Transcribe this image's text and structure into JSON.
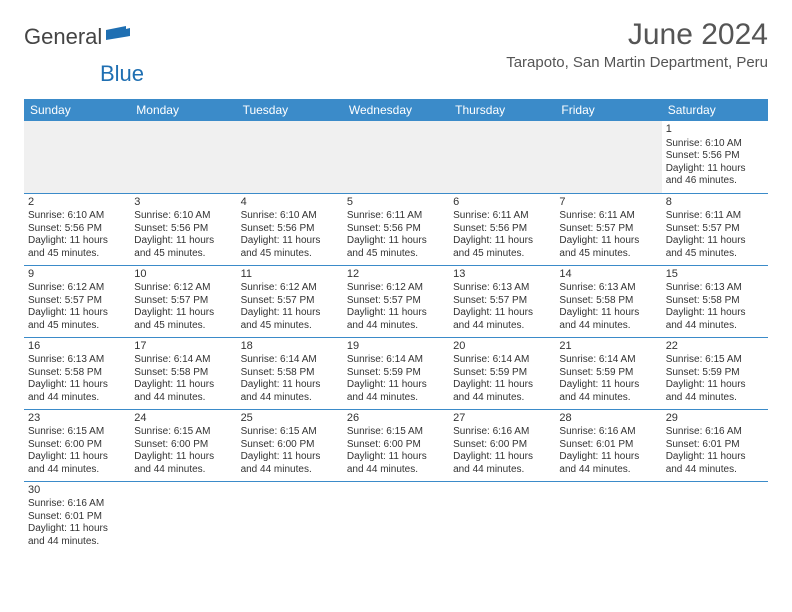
{
  "logo": {
    "general": "General",
    "blue": "Blue"
  },
  "header": {
    "month_title": "June 2024",
    "location": "Tarapoto, San Martin Department, Peru"
  },
  "colors": {
    "header_bg": "#3b8bc9",
    "header_text": "#ffffff",
    "cell_border": "#3b8bc9",
    "blank_bg": "#f0f0f0",
    "text": "#333333",
    "logo_blue": "#1f6fb2"
  },
  "day_names": [
    "Sunday",
    "Monday",
    "Tuesday",
    "Wednesday",
    "Thursday",
    "Friday",
    "Saturday"
  ],
  "weeks": [
    [
      null,
      null,
      null,
      null,
      null,
      null,
      {
        "n": "1",
        "sr": "6:10 AM",
        "ss": "5:56 PM",
        "dl": "11 hours and 46 minutes."
      }
    ],
    [
      {
        "n": "2",
        "sr": "6:10 AM",
        "ss": "5:56 PM",
        "dl": "11 hours and 45 minutes."
      },
      {
        "n": "3",
        "sr": "6:10 AM",
        "ss": "5:56 PM",
        "dl": "11 hours and 45 minutes."
      },
      {
        "n": "4",
        "sr": "6:10 AM",
        "ss": "5:56 PM",
        "dl": "11 hours and 45 minutes."
      },
      {
        "n": "5",
        "sr": "6:11 AM",
        "ss": "5:56 PM",
        "dl": "11 hours and 45 minutes."
      },
      {
        "n": "6",
        "sr": "6:11 AM",
        "ss": "5:56 PM",
        "dl": "11 hours and 45 minutes."
      },
      {
        "n": "7",
        "sr": "6:11 AM",
        "ss": "5:57 PM",
        "dl": "11 hours and 45 minutes."
      },
      {
        "n": "8",
        "sr": "6:11 AM",
        "ss": "5:57 PM",
        "dl": "11 hours and 45 minutes."
      }
    ],
    [
      {
        "n": "9",
        "sr": "6:12 AM",
        "ss": "5:57 PM",
        "dl": "11 hours and 45 minutes."
      },
      {
        "n": "10",
        "sr": "6:12 AM",
        "ss": "5:57 PM",
        "dl": "11 hours and 45 minutes."
      },
      {
        "n": "11",
        "sr": "6:12 AM",
        "ss": "5:57 PM",
        "dl": "11 hours and 45 minutes."
      },
      {
        "n": "12",
        "sr": "6:12 AM",
        "ss": "5:57 PM",
        "dl": "11 hours and 44 minutes."
      },
      {
        "n": "13",
        "sr": "6:13 AM",
        "ss": "5:57 PM",
        "dl": "11 hours and 44 minutes."
      },
      {
        "n": "14",
        "sr": "6:13 AM",
        "ss": "5:58 PM",
        "dl": "11 hours and 44 minutes."
      },
      {
        "n": "15",
        "sr": "6:13 AM",
        "ss": "5:58 PM",
        "dl": "11 hours and 44 minutes."
      }
    ],
    [
      {
        "n": "16",
        "sr": "6:13 AM",
        "ss": "5:58 PM",
        "dl": "11 hours and 44 minutes."
      },
      {
        "n": "17",
        "sr": "6:14 AM",
        "ss": "5:58 PM",
        "dl": "11 hours and 44 minutes."
      },
      {
        "n": "18",
        "sr": "6:14 AM",
        "ss": "5:58 PM",
        "dl": "11 hours and 44 minutes."
      },
      {
        "n": "19",
        "sr": "6:14 AM",
        "ss": "5:59 PM",
        "dl": "11 hours and 44 minutes."
      },
      {
        "n": "20",
        "sr": "6:14 AM",
        "ss": "5:59 PM",
        "dl": "11 hours and 44 minutes."
      },
      {
        "n": "21",
        "sr": "6:14 AM",
        "ss": "5:59 PM",
        "dl": "11 hours and 44 minutes."
      },
      {
        "n": "22",
        "sr": "6:15 AM",
        "ss": "5:59 PM",
        "dl": "11 hours and 44 minutes."
      }
    ],
    [
      {
        "n": "23",
        "sr": "6:15 AM",
        "ss": "6:00 PM",
        "dl": "11 hours and 44 minutes."
      },
      {
        "n": "24",
        "sr": "6:15 AM",
        "ss": "6:00 PM",
        "dl": "11 hours and 44 minutes."
      },
      {
        "n": "25",
        "sr": "6:15 AM",
        "ss": "6:00 PM",
        "dl": "11 hours and 44 minutes."
      },
      {
        "n": "26",
        "sr": "6:15 AM",
        "ss": "6:00 PM",
        "dl": "11 hours and 44 minutes."
      },
      {
        "n": "27",
        "sr": "6:16 AM",
        "ss": "6:00 PM",
        "dl": "11 hours and 44 minutes."
      },
      {
        "n": "28",
        "sr": "6:16 AM",
        "ss": "6:01 PM",
        "dl": "11 hours and 44 minutes."
      },
      {
        "n": "29",
        "sr": "6:16 AM",
        "ss": "6:01 PM",
        "dl": "11 hours and 44 minutes."
      }
    ],
    [
      {
        "n": "30",
        "sr": "6:16 AM",
        "ss": "6:01 PM",
        "dl": "11 hours and 44 minutes."
      },
      null,
      null,
      null,
      null,
      null,
      null
    ]
  ],
  "labels": {
    "sunrise": "Sunrise: ",
    "sunset": "Sunset: ",
    "daylight": "Daylight: "
  }
}
